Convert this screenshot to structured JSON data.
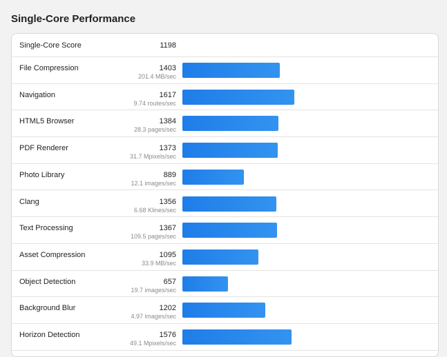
{
  "page": {
    "title": "Single-Core Performance"
  },
  "summary": {
    "label": "Single-Core Score",
    "score": "1198"
  },
  "colors": {
    "bar": "#1f7de8",
    "bar_end": "#3393f0"
  },
  "bar_scale_max": 1617,
  "workloads": [
    {
      "name": "File Compression",
      "score": 1403,
      "throughput": "201.4 MB/sec"
    },
    {
      "name": "Navigation",
      "score": 1617,
      "throughput": "9.74 routes/sec"
    },
    {
      "name": "HTML5 Browser",
      "score": 1384,
      "throughput": "28.3 pages/sec"
    },
    {
      "name": "PDF Renderer",
      "score": 1373,
      "throughput": "31.7 Mpixels/sec"
    },
    {
      "name": "Photo Library",
      "score": 889,
      "throughput": "12.1 images/sec"
    },
    {
      "name": "Clang",
      "score": 1356,
      "throughput": "6.68 Klines/sec"
    },
    {
      "name": "Text Processing",
      "score": 1367,
      "throughput": "109.5 pages/sec"
    },
    {
      "name": "Asset Compression",
      "score": 1095,
      "throughput": "33.9 MB/sec"
    },
    {
      "name": "Object Detection",
      "score": 657,
      "throughput": "19.7 images/sec"
    },
    {
      "name": "Background Blur",
      "score": 1202,
      "throughput": "4.97 images/sec"
    },
    {
      "name": "Horizon Detection",
      "score": 1576,
      "throughput": "49.1 Mpixels/sec"
    }
  ]
}
